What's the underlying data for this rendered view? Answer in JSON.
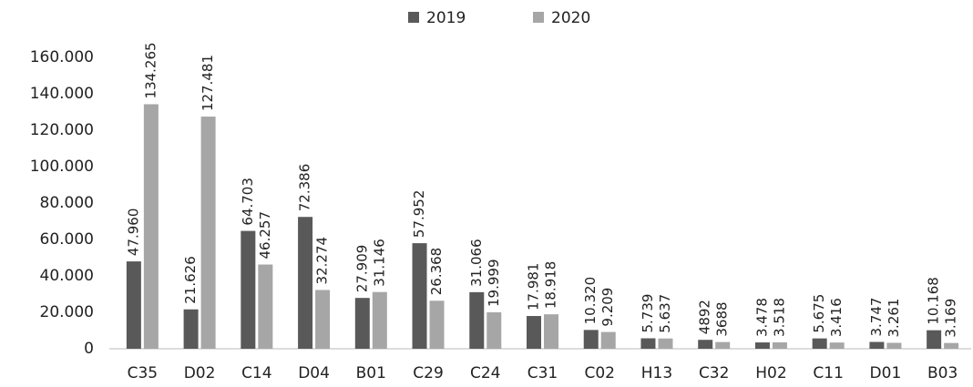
{
  "chart_data": {
    "type": "bar",
    "categories": [
      "C35",
      "D02",
      "C14",
      "D04",
      "B01",
      "C29",
      "C24",
      "C31",
      "C02",
      "H13",
      "C32",
      "H02",
      "C11",
      "D01",
      "B03"
    ],
    "series": [
      {
        "name": "2019",
        "color": "#595959",
        "values": [
          47960,
          21626,
          64703,
          72386,
          27909,
          57952,
          31066,
          17981,
          10320,
          5739,
          4892,
          3478,
          5675,
          3747,
          10168
        ],
        "value_labels": [
          "47.960",
          "21.626",
          "64.703",
          "72.386",
          "27.909",
          "57.952",
          "31.066",
          "17.981",
          "10.320",
          "5.739",
          "4892",
          "3.478",
          "5.675",
          "3.747",
          "10.168"
        ]
      },
      {
        "name": "2020",
        "color": "#a6a6a6",
        "values": [
          134265,
          127481,
          46257,
          32274,
          31146,
          26368,
          19999,
          18918,
          9209,
          5637,
          3688,
          3518,
          3416,
          3261,
          3169
        ],
        "value_labels": [
          "134.265",
          "127.481",
          "46.257",
          "32.274",
          "31.146",
          "26.368",
          "19.999",
          "18.918",
          "9.209",
          "5.637",
          "3688",
          "3.518",
          "3.416",
          "3.261",
          "3.169"
        ]
      }
    ],
    "ylim": [
      0,
      160000
    ],
    "yticks": [
      0,
      {
        "value": 20000,
        "label": "20.000"
      },
      {
        "value": 40000,
        "label": "40.000"
      },
      {
        "value": 60000,
        "label": "60.000"
      },
      {
        "value": 80000,
        "label": "80.000"
      },
      {
        "value": 100000,
        "label": "100.000"
      },
      {
        "value": 120000,
        "label": "120.000"
      },
      {
        "value": 140000,
        "label": "140.000"
      },
      {
        "value": 160000,
        "label": "160.000"
      }
    ],
    "grid": false,
    "legend": "top"
  }
}
